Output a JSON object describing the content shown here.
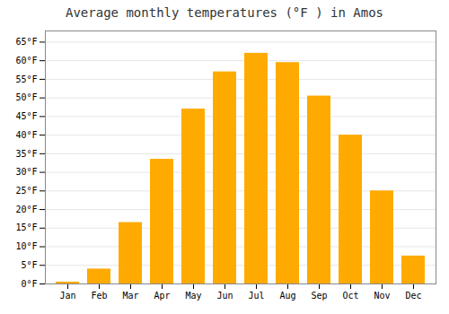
{
  "chart_data": {
    "type": "bar",
    "title": "Average monthly temperatures (°F ) in Amos",
    "categories": [
      "Jan",
      "Feb",
      "Mar",
      "Apr",
      "May",
      "Jun",
      "Jul",
      "Aug",
      "Sep",
      "Oct",
      "Nov",
      "Dec"
    ],
    "values": [
      0.5,
      4.0,
      16.5,
      33.5,
      47.0,
      57.0,
      62.0,
      59.5,
      50.5,
      40.0,
      25.0,
      7.5
    ],
    "color": "#FFAA00",
    "ylim": [
      0,
      68
    ],
    "yticks": [
      {
        "value": 0,
        "label": "0°F"
      },
      {
        "value": 5,
        "label": "5°F"
      },
      {
        "value": 10,
        "label": "10°F"
      },
      {
        "value": 15,
        "label": "15°F"
      },
      {
        "value": 20,
        "label": "20°F"
      },
      {
        "value": 25,
        "label": "25°F"
      },
      {
        "value": 30,
        "label": "30°F"
      },
      {
        "value": 35,
        "label": "35°F"
      },
      {
        "value": 40,
        "label": "40°F"
      },
      {
        "value": 45,
        "label": "45°F"
      },
      {
        "value": 50,
        "label": "50°F"
      },
      {
        "value": 55,
        "label": "55°F"
      },
      {
        "value": 60,
        "label": "60°F"
      },
      {
        "value": 65,
        "label": "65°F"
      }
    ],
    "grid": true
  }
}
